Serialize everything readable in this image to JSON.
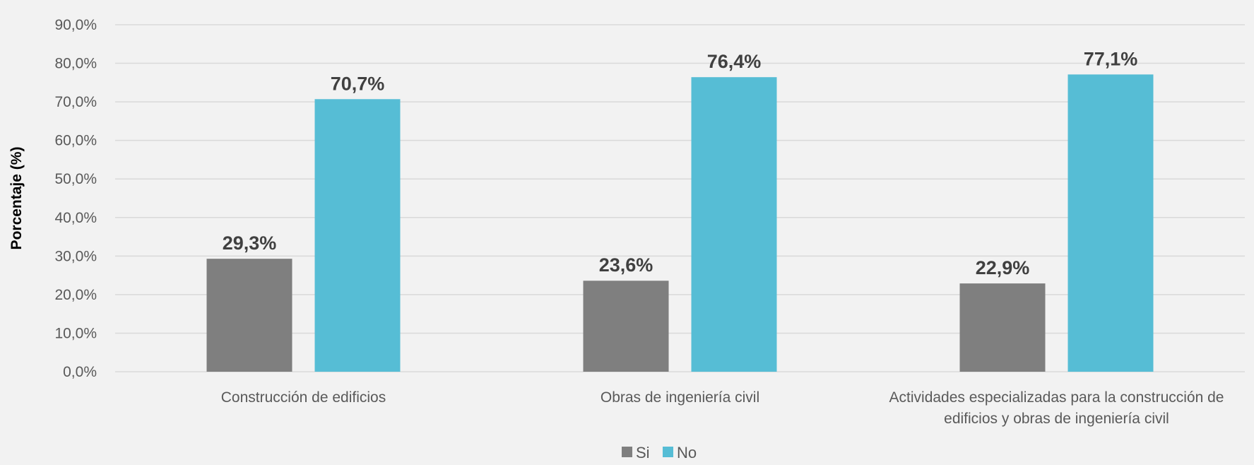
{
  "chart_data": {
    "type": "bar",
    "title": "",
    "xlabel": "",
    "ylabel": "Porcentaje (%)",
    "ylim": [
      0,
      90
    ],
    "ytick_step": 10,
    "ytick_labels": [
      "0,0%",
      "10,0%",
      "20,0%",
      "30,0%",
      "40,0%",
      "50,0%",
      "60,0%",
      "70,0%",
      "80,0%",
      "90,0%"
    ],
    "grid": true,
    "legend_position": "bottom-center",
    "categories": [
      [
        "Construcción de edificios"
      ],
      [
        "Obras de ingeniería civil"
      ],
      [
        "Actividades especializadas para la construcción de",
        "edificios y obras de ingeniería civil"
      ]
    ],
    "series": [
      {
        "name": "Si",
        "color": "#7f7f7f",
        "values": [
          29.3,
          23.6,
          22.9
        ],
        "labels": [
          "29,3%",
          "23,6%",
          "22,9%"
        ]
      },
      {
        "name": "No",
        "color": "#56bdd5",
        "values": [
          70.7,
          76.4,
          77.1
        ],
        "labels": [
          "70,7%",
          "76,4%",
          "77,1%"
        ]
      }
    ]
  }
}
